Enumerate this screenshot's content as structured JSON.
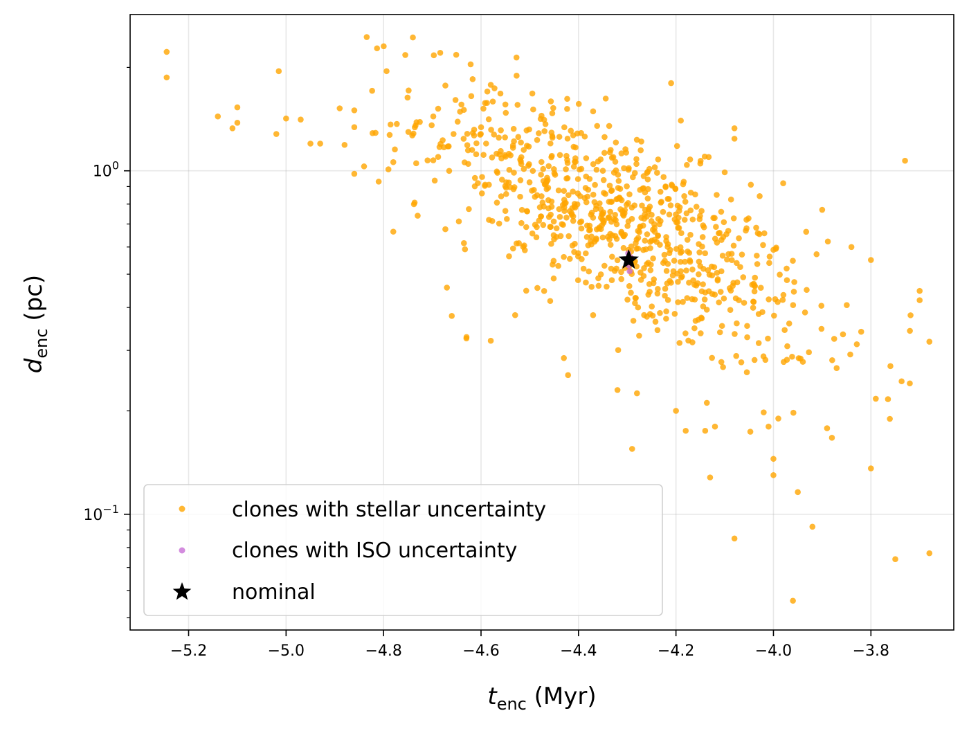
{
  "chart_data": {
    "type": "scatter",
    "title": "",
    "xlabel": {
      "main": "t",
      "sub": "enc",
      "unit": " (Myr)"
    },
    "ylabel": {
      "main": "d",
      "sub": "enc",
      "unit": " (pc)"
    },
    "x_range": [
      -5.32,
      -3.63
    ],
    "y_range_log10": [
      -1.337,
      0.455
    ],
    "y_scale": "log",
    "grid": true,
    "x_ticks": [
      {
        "value": -5.2,
        "label": "−5.2"
      },
      {
        "value": -5.0,
        "label": "−5.0"
      },
      {
        "value": -4.8,
        "label": "−4.8"
      },
      {
        "value": -4.6,
        "label": "−4.6"
      },
      {
        "value": -4.4,
        "label": "−4.4"
      },
      {
        "value": -4.2,
        "label": "−4.2"
      },
      {
        "value": -4.0,
        "label": "−4.0"
      },
      {
        "value": -3.8,
        "label": "−3.8"
      }
    ],
    "y_major_ticks": [
      {
        "value": 1.0,
        "base": "10",
        "exp": "0"
      },
      {
        "value": 0.1,
        "base": "10",
        "exp": "−1"
      }
    ],
    "legend": {
      "placement": "lower-left",
      "entries": [
        {
          "label": "clones with stellar uncertainty",
          "marker": "dot",
          "color": "#ffa500"
        },
        {
          "label": "clones with ISO uncertainty",
          "marker": "dot",
          "color": "#c86fd6"
        },
        {
          "label": "nominal",
          "marker": "star",
          "color": "#000000"
        }
      ]
    },
    "series": [
      {
        "name": "clones with stellar uncertainty",
        "color": "#ffa500",
        "generated": {
          "count": 820,
          "seed": 12345,
          "x_mean": -4.32,
          "x_sd": 0.2,
          "log10y_intercept": -0.15,
          "log10y_slope": -0.75,
          "log10y_sd": 0.135
        },
        "points": [
          {
            "x": -5.245,
            "y": 2.22
          },
          {
            "x": -5.245,
            "y": 1.87
          },
          {
            "x": -5.015,
            "y": 1.95
          },
          {
            "x": -5.14,
            "y": 1.44
          },
          {
            "x": -5.1,
            "y": 1.53
          },
          {
            "x": -5.1,
            "y": 1.38
          },
          {
            "x": -5.11,
            "y": 1.33
          },
          {
            "x": -5.02,
            "y": 1.28
          },
          {
            "x": -5.0,
            "y": 1.42
          },
          {
            "x": -4.97,
            "y": 1.41
          },
          {
            "x": -4.89,
            "y": 1.52
          },
          {
            "x": -4.86,
            "y": 1.5
          },
          {
            "x": -4.86,
            "y": 1.34
          },
          {
            "x": -4.88,
            "y": 1.19
          },
          {
            "x": -4.84,
            "y": 1.03
          },
          {
            "x": -4.86,
            "y": 0.98
          },
          {
            "x": -4.95,
            "y": 1.2
          },
          {
            "x": -4.93,
            "y": 1.2
          },
          {
            "x": -4.21,
            "y": 1.8
          },
          {
            "x": -3.73,
            "y": 1.07
          },
          {
            "x": -3.7,
            "y": 0.447
          },
          {
            "x": -3.7,
            "y": 0.42
          },
          {
            "x": -3.72,
            "y": 0.342
          },
          {
            "x": -3.68,
            "y": 0.318
          },
          {
            "x": -3.76,
            "y": 0.27
          },
          {
            "x": -3.79,
            "y": 0.217
          },
          {
            "x": -3.8,
            "y": 0.136
          },
          {
            "x": -3.75,
            "y": 0.074
          },
          {
            "x": -3.68,
            "y": 0.077
          },
          {
            "x": -3.96,
            "y": 0.056
          },
          {
            "x": -3.92,
            "y": 0.092
          },
          {
            "x": -3.95,
            "y": 0.116
          },
          {
            "x": -4.08,
            "y": 0.085
          },
          {
            "x": -4.13,
            "y": 0.128
          },
          {
            "x": -4.29,
            "y": 0.155
          },
          {
            "x": -4.63,
            "y": 0.325
          },
          {
            "x": -4.66,
            "y": 0.378
          },
          {
            "x": -4.67,
            "y": 0.457
          },
          {
            "x": -4.78,
            "y": 0.665
          },
          {
            "x": -4.81,
            "y": 0.93
          },
          {
            "x": -4.62,
            "y": 1.65
          },
          {
            "x": -4.58,
            "y": 1.78
          },
          {
            "x": -4.78,
            "y": 1.06
          },
          {
            "x": -4.73,
            "y": 0.74
          },
          {
            "x": -4.79,
            "y": 1.01
          },
          {
            "x": -4.43,
            "y": 0.285
          },
          {
            "x": -4.32,
            "y": 0.23
          },
          {
            "x": -4.28,
            "y": 0.225
          },
          {
            "x": -4.2,
            "y": 0.2
          },
          {
            "x": -4.18,
            "y": 0.175
          },
          {
            "x": -3.82,
            "y": 0.34
          },
          {
            "x": -3.84,
            "y": 0.6
          },
          {
            "x": -3.8,
            "y": 0.55
          },
          {
            "x": -3.9,
            "y": 0.77
          },
          {
            "x": -3.98,
            "y": 0.92
          },
          {
            "x": -4.1,
            "y": 0.99
          },
          {
            "x": -4.08,
            "y": 1.24
          },
          {
            "x": -4.08,
            "y": 1.33
          },
          {
            "x": -4.15,
            "y": 1.05
          },
          {
            "x": -4.19,
            "y": 1.4
          },
          {
            "x": -4.37,
            "y": 1.49
          },
          {
            "x": -4.55,
            "y": 1.56
          },
          {
            "x": -4.58,
            "y": 0.32
          },
          {
            "x": -4.37,
            "y": 0.38
          },
          {
            "x": -4.53,
            "y": 0.38
          },
          {
            "x": -4.0,
            "y": 0.13
          },
          {
            "x": -4.0,
            "y": 0.145
          },
          {
            "x": -3.89,
            "y": 0.178
          },
          {
            "x": -3.88,
            "y": 0.167
          },
          {
            "x": -4.12,
            "y": 0.18
          },
          {
            "x": -4.14,
            "y": 0.175
          },
          {
            "x": -4.01,
            "y": 0.18
          },
          {
            "x": -3.99,
            "y": 0.19
          },
          {
            "x": -4.02,
            "y": 0.198
          }
        ]
      },
      {
        "name": "clones with ISO uncertainty",
        "color": "#c86fd6",
        "points": [
          {
            "x": -4.295,
            "y": 0.51
          },
          {
            "x": -4.297,
            "y": 0.53
          },
          {
            "x": -4.3,
            "y": 0.545
          },
          {
            "x": -4.293,
            "y": 0.56
          },
          {
            "x": -4.298,
            "y": 0.575
          }
        ]
      },
      {
        "name": "nominal",
        "color": "#000000",
        "marker": "star",
        "points": [
          {
            "x": -4.297,
            "y": 0.55
          }
        ]
      }
    ]
  }
}
